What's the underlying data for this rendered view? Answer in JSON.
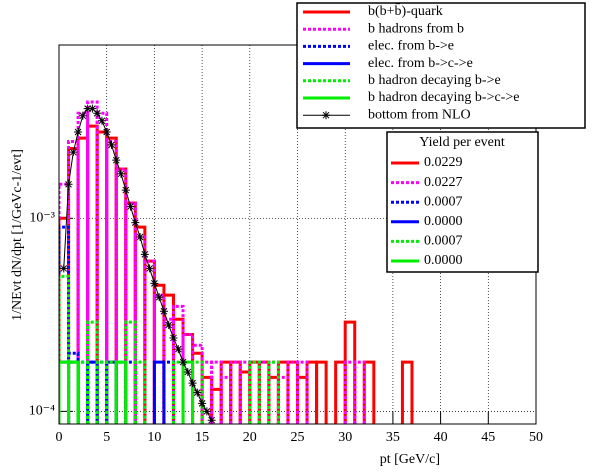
{
  "chart_data": {
    "type": "histogram",
    "xlabel": "pt [GeV/c]",
    "ylabel": "1/NEvt dN/dpt [1/GeVc-1/evt]",
    "log_y": true,
    "grid": true,
    "xlim": [
      0,
      50
    ],
    "xticks": [
      0,
      5,
      10,
      15,
      20,
      25,
      30,
      35,
      40,
      45,
      50
    ],
    "ylim": [
      8.6e-05,
      0.0079
    ],
    "yticks": [
      {
        "value": 0.0001,
        "label": "10⁻⁴"
      },
      {
        "value": 0.001,
        "label": "10⁻³"
      }
    ],
    "bins": [
      0,
      1,
      2,
      3,
      4,
      5,
      6,
      7,
      8,
      9,
      10,
      11,
      12,
      13,
      14,
      15,
      16,
      17,
      18,
      19,
      20,
      21,
      22,
      23,
      24,
      25,
      26,
      27,
      28,
      29,
      30,
      31,
      32,
      33,
      34,
      35,
      36,
      37,
      38,
      39,
      40,
      41,
      42,
      43,
      44,
      45,
      46,
      47,
      48,
      49,
      50
    ],
    "series": [
      {
        "name": "b(b+b̄)-quark",
        "color": "#ff0000",
        "dash": false,
        "values": [
          0.001,
          0.0023,
          0.0026,
          0.003,
          0.0028,
          0.0026,
          0.0018,
          0.0012,
          0.0009,
          0.0006,
          0.00045,
          0.0004,
          0.0003,
          0.00025,
          0.0002,
          0.00015,
          0.00013,
          0.00018,
          0.00018,
          0.00016,
          0.00018,
          0.00018,
          0.00015,
          0.00018,
          0.00018,
          0.00015,
          0.00018,
          0.00018,
          null,
          0.00018,
          0.00029,
          null,
          0.00018,
          null,
          null,
          null,
          0.00018,
          null,
          null,
          null,
          null,
          null,
          null,
          null,
          null,
          null,
          null,
          null,
          null,
          null
        ]
      },
      {
        "name": "b hadrons from b",
        "color": "#ff00ff",
        "dash": true,
        "values": [
          0.0015,
          0.0025,
          0.0035,
          0.004,
          0.0035,
          0.0025,
          0.0018,
          0.0012,
          0.0008,
          0.0006,
          0.0004,
          0.0003,
          0.00035,
          0.00025,
          0.00022,
          0.00018,
          0.00018,
          0.00015,
          0.00018,
          0.00018,
          0.00018,
          0.00018,
          0.00018,
          0.00015,
          0.00018,
          0.00018,
          null,
          null,
          null,
          null,
          0.00018,
          0.00018,
          null,
          null,
          null,
          null,
          null,
          null,
          null,
          null,
          null,
          null,
          null,
          null,
          null,
          null,
          null,
          null,
          null,
          null
        ]
      },
      {
        "name": "elec. from b->e",
        "color": "#0000ff",
        "dash": true,
        "values": [
          0.0009,
          0.0002,
          0.00018,
          0.00018,
          0.00018,
          0.00018,
          0.00018,
          0.00018,
          null,
          null,
          null,
          0.00018,
          null,
          null,
          null,
          null,
          null,
          null,
          null,
          null,
          null,
          null,
          null,
          null,
          null,
          null,
          null,
          null,
          null,
          null,
          null,
          null,
          null,
          null,
          null,
          null,
          null,
          null,
          null,
          null,
          null,
          null,
          null,
          null,
          null,
          null,
          null,
          null,
          null,
          null
        ]
      },
      {
        "name": "elec. from b->c->e",
        "color": "#0000ff",
        "dash": false,
        "values": [
          0.00018,
          0.00018,
          null,
          0.00018,
          null,
          0.00018,
          null,
          null,
          null,
          null,
          0.00018,
          null,
          null,
          null,
          null,
          null,
          null,
          null,
          null,
          null,
          null,
          null,
          null,
          null,
          null,
          null,
          null,
          null,
          null,
          null,
          null,
          null,
          null,
          null,
          null,
          null,
          null,
          null,
          null,
          null,
          null,
          null,
          null,
          null,
          null,
          null,
          null,
          null,
          null,
          null
        ]
      },
      {
        "name": "b hadron decaying b->e",
        "color": "#00ee00",
        "dash": true,
        "values": [
          0.0005,
          0.00018,
          0.00018,
          0.00029,
          0.00018,
          0.00018,
          0.00018,
          0.00029,
          0.00018,
          null,
          null,
          null,
          0.00018,
          null,
          0.00018,
          null,
          null,
          null,
          null,
          null,
          0.00018,
          null,
          0.00018,
          null,
          null,
          null,
          null,
          null,
          null,
          null,
          null,
          null,
          null,
          null,
          null,
          null,
          null,
          null,
          null,
          null,
          null,
          null,
          null,
          null,
          null,
          null,
          null,
          null,
          null,
          null
        ]
      },
      {
        "name": "b hadron decaying b->c->e",
        "color": "#00ee00",
        "dash": false,
        "values": [
          0.00018,
          0.00018,
          null,
          null,
          null,
          null,
          0.00018,
          null,
          null,
          null,
          null,
          null,
          null,
          0.00018,
          null,
          null,
          null,
          null,
          null,
          null,
          null,
          null,
          null,
          null,
          null,
          null,
          null,
          null,
          null,
          null,
          null,
          null,
          null,
          null,
          null,
          null,
          null,
          null,
          null,
          null,
          null,
          null,
          null,
          null,
          null,
          null,
          null,
          null,
          null,
          null
        ]
      }
    ],
    "nlo": {
      "name": "bottom from NLO",
      "color": "#000000",
      "x": [
        0.5,
        1,
        1.5,
        2,
        2.5,
        3,
        3.5,
        4,
        4.5,
        5,
        5.5,
        6,
        6.5,
        7,
        7.5,
        8,
        8.5,
        9,
        9.5,
        10,
        10.5,
        11,
        11.5,
        12,
        12.5,
        13,
        13.5,
        14,
        14.5,
        15,
        15.5,
        16
      ],
      "values": [
        0.00055,
        0.0015,
        0.0022,
        0.0028,
        0.0034,
        0.0037,
        0.0037,
        0.0035,
        0.0032,
        0.0028,
        0.0024,
        0.002,
        0.0017,
        0.0014,
        0.00115,
        0.00095,
        0.0008,
        0.00065,
        0.00055,
        0.00046,
        0.00039,
        0.00033,
        0.00028,
        0.00024,
        0.00021,
        0.00018,
        0.00016,
        0.00014,
        0.000125,
        0.00011,
        0.0001,
        9e-05
      ]
    },
    "yield_legend": {
      "title": "Yield per event",
      "entries": [
        "0.0229",
        "0.0227",
        "0.0007",
        "0.0000",
        "0.0007",
        "0.0000"
      ]
    }
  }
}
